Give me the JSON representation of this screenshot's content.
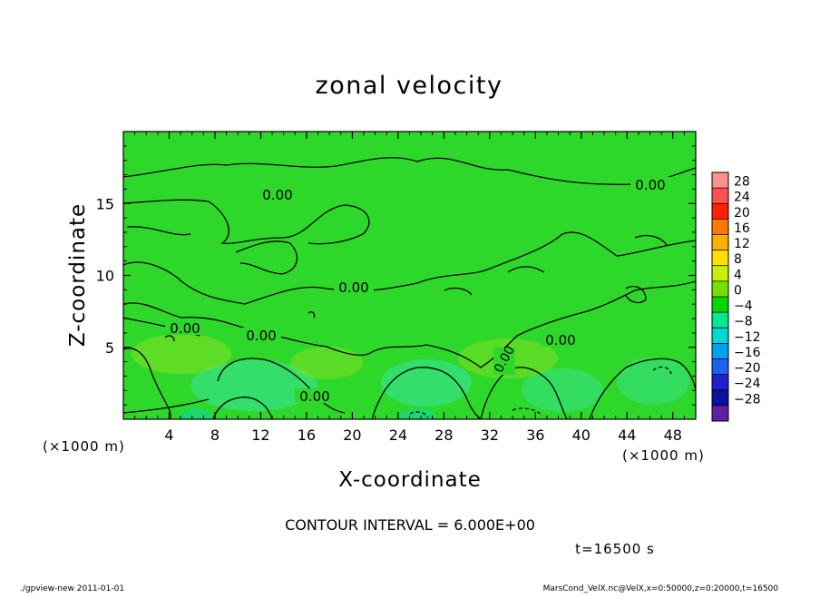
{
  "chart_data": {
    "type": "heatmap",
    "title": "zonal velocity",
    "xlabel": "X-coordinate",
    "ylabel": "Z-coordinate",
    "x_unit": "(×1000 m)",
    "y_unit": "(×1000 m)",
    "xlim": [
      0,
      50
    ],
    "ylim": [
      0,
      20
    ],
    "x_ticks": [
      4,
      8,
      12,
      16,
      20,
      24,
      28,
      32,
      36,
      40,
      44,
      48
    ],
    "y_ticks": [
      5,
      10,
      15
    ],
    "contour_interval_text": "CONTOUR INTERVAL = 6.000E+00",
    "time_text": "t=16500 s",
    "contour_labels": [
      "0.00",
      "0.00",
      "0.00",
      "0.00",
      "0.00",
      "0.00",
      "0.00",
      "0.00"
    ],
    "colorbar": {
      "levels": [
        28,
        24,
        20,
        16,
        12,
        8,
        4,
        0,
        -4,
        -8,
        -12,
        -16,
        -20,
        -24,
        -28
      ],
      "level_texts": [
        "28",
        "24",
        "20",
        "16",
        "12",
        "8",
        "4",
        "0",
        "−4",
        "−8",
        "−12",
        "−16",
        "−20",
        "−24",
        "−28"
      ],
      "colors": [
        "#ff9090",
        "#ff5050",
        "#ff2000",
        "#ff7800",
        "#ffb000",
        "#ffe000",
        "#c8f000",
        "#78e000",
        "#00d800",
        "#00e890",
        "#00d8d8",
        "#00a0f0",
        "#2060f0",
        "#2020d0",
        "#1010a0",
        "#6020a0"
      ]
    },
    "field_color": "#2ed82a",
    "grid": false
  },
  "footer": {
    "left": "./gpview-new   2011-01-01",
    "right": "MarsCond_VelX.nc@VelX,x=0:50000,z=0:20000,t=16500"
  }
}
